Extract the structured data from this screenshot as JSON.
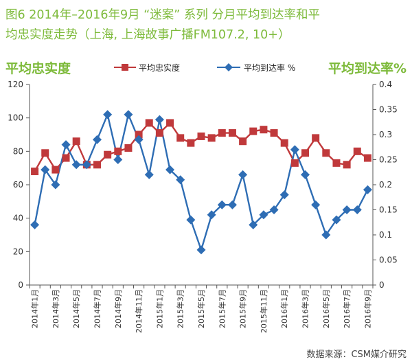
{
  "chart_data": {
    "type": "line",
    "title": "图6 2014年-2016年9月“迷案”系列 分月平均到达率和平均忠实度走势（上海，上海故事广播FM107.2，10+）",
    "title_lines": [
      "图6 2014年–2016年9月 “迷案” 系列  分月平均到达率和平",
      "均忠实度走势（上海, 上海故事广播FM107.2, 10+）"
    ],
    "left_axis_label": "平均忠实度",
    "right_axis_label": "平均到达率%",
    "legend_position": "top",
    "source_note": "数据来源：CSM媒介研究",
    "grid": false,
    "x": [
      "2014年1月",
      "2014年2月",
      "2014年3月",
      "2014年4月",
      "2014年5月",
      "2014年6月",
      "2014年7月",
      "2014年8月",
      "2014年9月",
      "2014年10月",
      "2014年11月",
      "2014年12月",
      "2015年1月",
      "2015年2月",
      "2015年3月",
      "2015年4月",
      "2015年5月",
      "2015年6月",
      "2015年7月",
      "2015年8月",
      "2015年9月",
      "2015年10月",
      "2015年11月",
      "2015年12月",
      "2016年1月",
      "2016年2月",
      "2016年3月",
      "2016年4月",
      "2016年5月",
      "2016年6月",
      "2016年7月",
      "2016年8月",
      "2016年9月"
    ],
    "x_tick_labels": [
      "2014年1月",
      "2014年3月",
      "2014年5月",
      "2014年7月",
      "2014年9月",
      "2014年11月",
      "2015年1月",
      "2015年3月",
      "2015年5月",
      "2015年7月",
      "2015年9月",
      "2015年11月",
      "2016年1月",
      "2016年3月",
      "2016年5月",
      "2016年7月",
      "2016年9月"
    ],
    "y_left": {
      "range": [
        0,
        120
      ],
      "ticks": [
        "0",
        "20",
        "40",
        "60",
        "80",
        "100",
        "120"
      ]
    },
    "y_right": {
      "range": [
        0,
        0.4
      ],
      "ticks": [
        "0",
        "0.05",
        "0.1",
        "0.15",
        "0.2",
        "0.25",
        "0.3",
        "0.35",
        "0.4"
      ]
    },
    "series": [
      {
        "name": "平均忠实度",
        "axis": "left",
        "color": "#c0393b",
        "marker": "square",
        "values": [
          68,
          79,
          69,
          76,
          86,
          72,
          72,
          78,
          80,
          82,
          90,
          97,
          91,
          97,
          88,
          85,
          89,
          88,
          91,
          91,
          86,
          92,
          93,
          91,
          85,
          73,
          79,
          88,
          79,
          73,
          72,
          80,
          76
        ]
      },
      {
        "name": "平均到达率 %",
        "axis": "right",
        "color": "#2e6db4",
        "marker": "diamond",
        "values": [
          0.12,
          0.23,
          0.2,
          0.28,
          0.24,
          0.24,
          0.29,
          0.34,
          0.25,
          0.34,
          0.29,
          0.22,
          0.33,
          0.23,
          0.21,
          0.13,
          0.07,
          0.14,
          0.16,
          0.16,
          0.22,
          0.12,
          0.14,
          0.15,
          0.18,
          0.27,
          0.22,
          0.16,
          0.1,
          0.13,
          0.15,
          0.15,
          0.19
        ]
      }
    ]
  }
}
